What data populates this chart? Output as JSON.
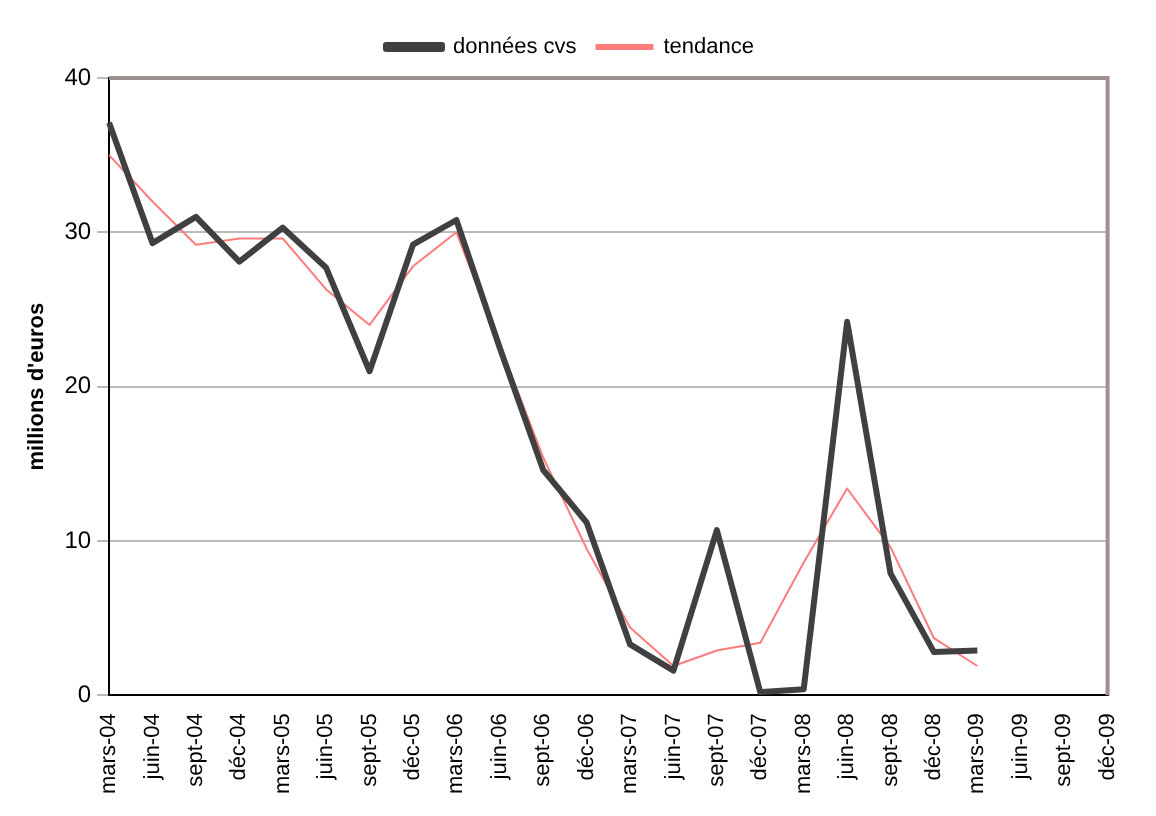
{
  "chart_data": {
    "type": "line",
    "ylabel": "millions d'euros",
    "categories": [
      "mars-04",
      "juin-04",
      "sept-04",
      "déc-04",
      "mars-05",
      "juin-05",
      "sept-05",
      "déc-05",
      "mars-06",
      "juin-06",
      "sept-06",
      "déc-06",
      "mars-07",
      "juin-07",
      "sept-07",
      "déc-07",
      "mars-08",
      "juin-08",
      "sept-08",
      "déc-08",
      "mars-09",
      "juin-09",
      "sept-09",
      "déc-09"
    ],
    "series": [
      {
        "name": "données cvs",
        "color": "#404040",
        "values": [
          37.1,
          29.3,
          31.0,
          28.1,
          30.3,
          27.7,
          21.0,
          29.2,
          30.8,
          22.5,
          14.6,
          11.2,
          3.3,
          1.6,
          10.7,
          0.2,
          0.4,
          24.2,
          7.9,
          2.8,
          2.9,
          null,
          null,
          null
        ]
      },
      {
        "name": "tendance",
        "color": "#ff7c7c",
        "values": [
          35.0,
          32.0,
          29.2,
          29.6,
          29.6,
          26.3,
          24.0,
          27.8,
          30.0,
          null,
          15.4,
          9.5,
          4.4,
          1.9,
          2.9,
          3.4,
          8.6,
          13.4,
          9.6,
          3.7,
          1.9,
          null,
          null,
          null
        ]
      }
    ],
    "ylim": [
      0,
      40
    ],
    "yticks": [
      0,
      10,
      20,
      30,
      40
    ],
    "grid": "y",
    "legend": "top",
    "marker": "none",
    "line_style": "solid"
  }
}
